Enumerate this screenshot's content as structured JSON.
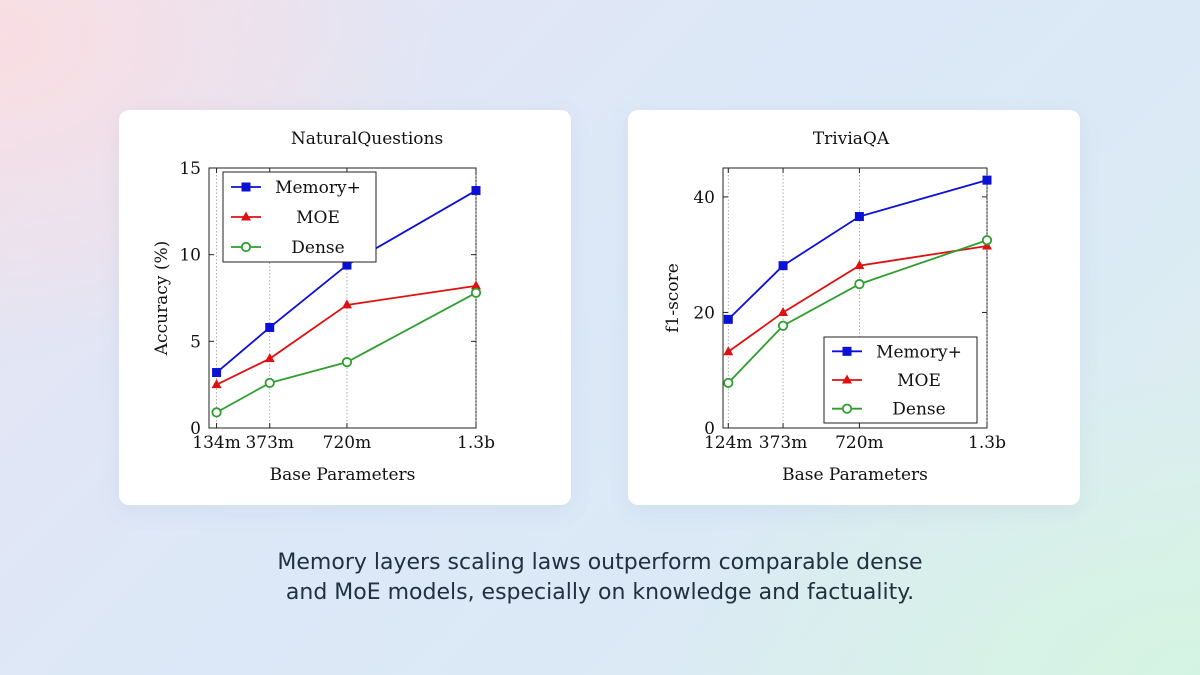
{
  "caption": {
    "line1": "Memory layers scaling laws outperform comparable dense",
    "line2": "and MoE models, especially on knowledge and factuality."
  },
  "colors": {
    "memory": "#0b10d6",
    "moe": "#e01010",
    "dense": "#2f9e2f"
  },
  "chart_data": [
    {
      "type": "line",
      "title": "NaturalQuestions",
      "xlabel": "Base Parameters",
      "ylabel": "Accuracy (%)",
      "categories": [
        "134m",
        "373m",
        "720m",
        "1.3b"
      ],
      "x": [
        134,
        373,
        720,
        1300
      ],
      "xlim": [
        100,
        1300
      ],
      "ylim": [
        0,
        15
      ],
      "yticks": [
        0,
        5,
        10,
        15
      ],
      "legend_position": "top-left",
      "series": [
        {
          "name": "Memory+",
          "marker": "square",
          "values": [
            3.2,
            5.8,
            9.4,
            13.7
          ]
        },
        {
          "name": "MOE",
          "marker": "triangle",
          "values": [
            2.5,
            4.0,
            7.1,
            8.2
          ]
        },
        {
          "name": "Dense",
          "marker": "circle",
          "values": [
            0.9,
            2.6,
            3.8,
            7.8
          ]
        }
      ]
    },
    {
      "type": "line",
      "title": "TriviaQA",
      "xlabel": "Base Parameters",
      "ylabel": "f1-score",
      "categories": [
        "124m",
        "373m",
        "720m",
        "1.3b"
      ],
      "x": [
        124,
        373,
        720,
        1300
      ],
      "xlim": [
        100,
        1300
      ],
      "ylim": [
        0,
        45
      ],
      "yticks": [
        0,
        20,
        40
      ],
      "legend_position": "bottom-right",
      "series": [
        {
          "name": "Memory+",
          "marker": "square",
          "values": [
            18.8,
            28.1,
            36.6,
            42.9
          ]
        },
        {
          "name": "MOE",
          "marker": "triangle",
          "values": [
            13.2,
            20.0,
            28.1,
            31.5
          ]
        },
        {
          "name": "Dense",
          "marker": "circle",
          "values": [
            7.8,
            17.7,
            24.9,
            32.5
          ]
        }
      ]
    }
  ]
}
